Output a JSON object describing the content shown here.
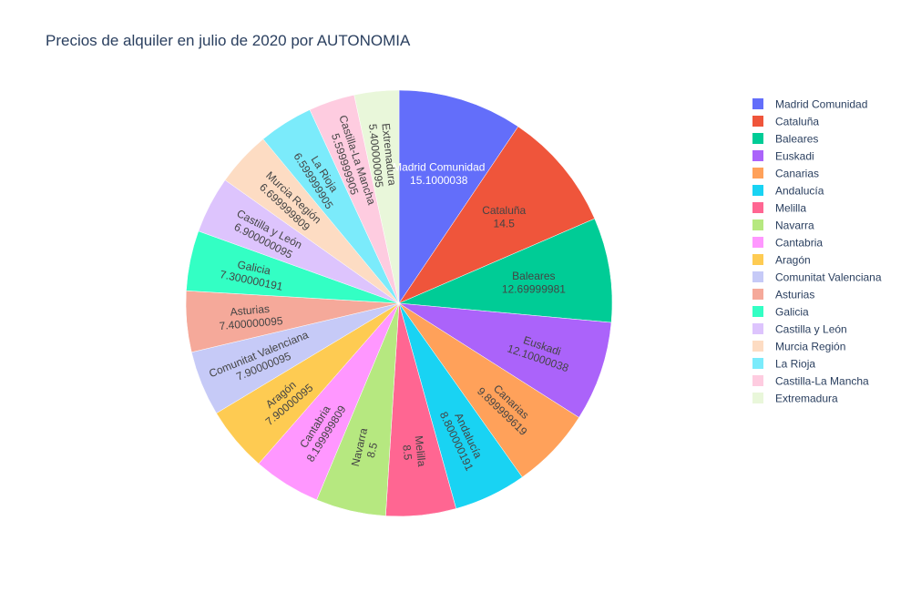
{
  "chart_data": {
    "type": "pie",
    "title": "Precios de alquiler en julio de 2020 por AUTONOMIA",
    "legend_position": "right",
    "categories": [
      "Madrid Comunidad",
      "Cataluña",
      "Baleares",
      "Euskadi",
      "Canarias",
      "Andalucía",
      "Melilla",
      "Navarra",
      "Cantabria",
      "Aragón",
      "Comunitat Valenciana",
      "Asturias",
      "Galicia",
      "Castilla y León",
      "Murcia Región",
      "La Rioja",
      "Castilla-La Mancha",
      "Extremadura"
    ],
    "values": [
      15.1000038,
      14.5,
      12.69999981,
      12.10000038,
      9.899999619,
      8.800000191,
      8.5,
      8.5,
      8.199999809,
      7.90000095,
      7.90000095,
      7.400000095,
      7.300000191,
      6.900000095,
      6.699999809,
      6.599999905,
      5.599999905,
      5.400000095
    ],
    "value_labels": [
      "15.1000038",
      "14.5",
      "12.69999981",
      "12.10000038",
      "9.899999619",
      "8.800000191",
      "8.5",
      "8.5",
      "8.199999809",
      "7.90000095",
      "7.90000095",
      "7.400000095",
      "7.300000191",
      "6.900000095",
      "6.699999809",
      "6.599999905",
      "5.599999905",
      "5.400000095"
    ],
    "colors": [
      "#636efa",
      "#EF553B",
      "#00cc96",
      "#ab63fa",
      "#FFA15A",
      "#19d3f3",
      "#FF6692",
      "#B6E880",
      "#FF97FF",
      "#FECB52",
      "#c6caf7",
      "#f5a99a",
      "#33ffc4",
      "#ddc4fd",
      "#fddcc3",
      "#7bebfb",
      "#fecce0",
      "#e9f7da"
    ],
    "label_text_colors": [
      "#ffffff",
      "#444444",
      "#444444",
      "#444444",
      "#444444",
      "#444444",
      "#444444",
      "#444444",
      "#444444",
      "#444444",
      "#444444",
      "#444444",
      "#444444",
      "#444444",
      "#444444",
      "#444444",
      "#444444",
      "#444444"
    ]
  }
}
